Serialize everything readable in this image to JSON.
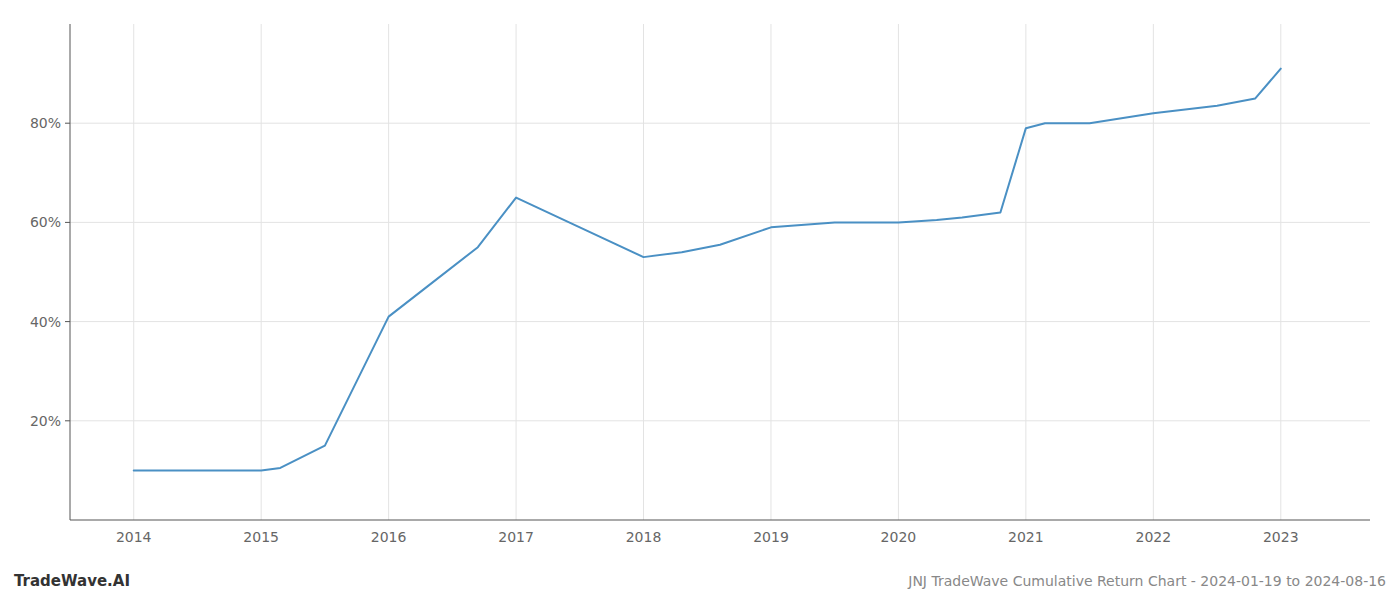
{
  "chart_data": {
    "type": "line",
    "title": "JNJ TradeWave Cumulative Return Chart - 2024-01-19 to 2024-08-16",
    "annotations": [
      "TradeWave.AI"
    ],
    "x": [
      2014,
      2015,
      2015.15,
      2015.5,
      2016,
      2016.3,
      2016.7,
      2017,
      2017.5,
      2018,
      2018.3,
      2018.6,
      2019,
      2019.5,
      2020,
      2020.3,
      2020.5,
      2020.8,
      2021,
      2021.15,
      2021.5,
      2022,
      2022.5,
      2022.8,
      2023
    ],
    "values": [
      10,
      10,
      10.5,
      15,
      41,
      47,
      55,
      65,
      59,
      53,
      54,
      55.5,
      59,
      60,
      60,
      60.5,
      61,
      62,
      79,
      80,
      80,
      82,
      83.5,
      85,
      91
    ],
    "color": "#4a90c4",
    "xlim": [
      2013.5,
      2023.7
    ],
    "ylim": [
      0,
      100
    ],
    "xticks": [
      2014,
      2015,
      2016,
      2017,
      2018,
      2019,
      2020,
      2021,
      2022,
      2023
    ],
    "yticks": [
      {
        "value": 20,
        "label": "20%"
      },
      {
        "value": 40,
        "label": "40%"
      },
      {
        "value": 60,
        "label": "60%"
      },
      {
        "value": 80,
        "label": "80%"
      }
    ],
    "grid": true
  }
}
